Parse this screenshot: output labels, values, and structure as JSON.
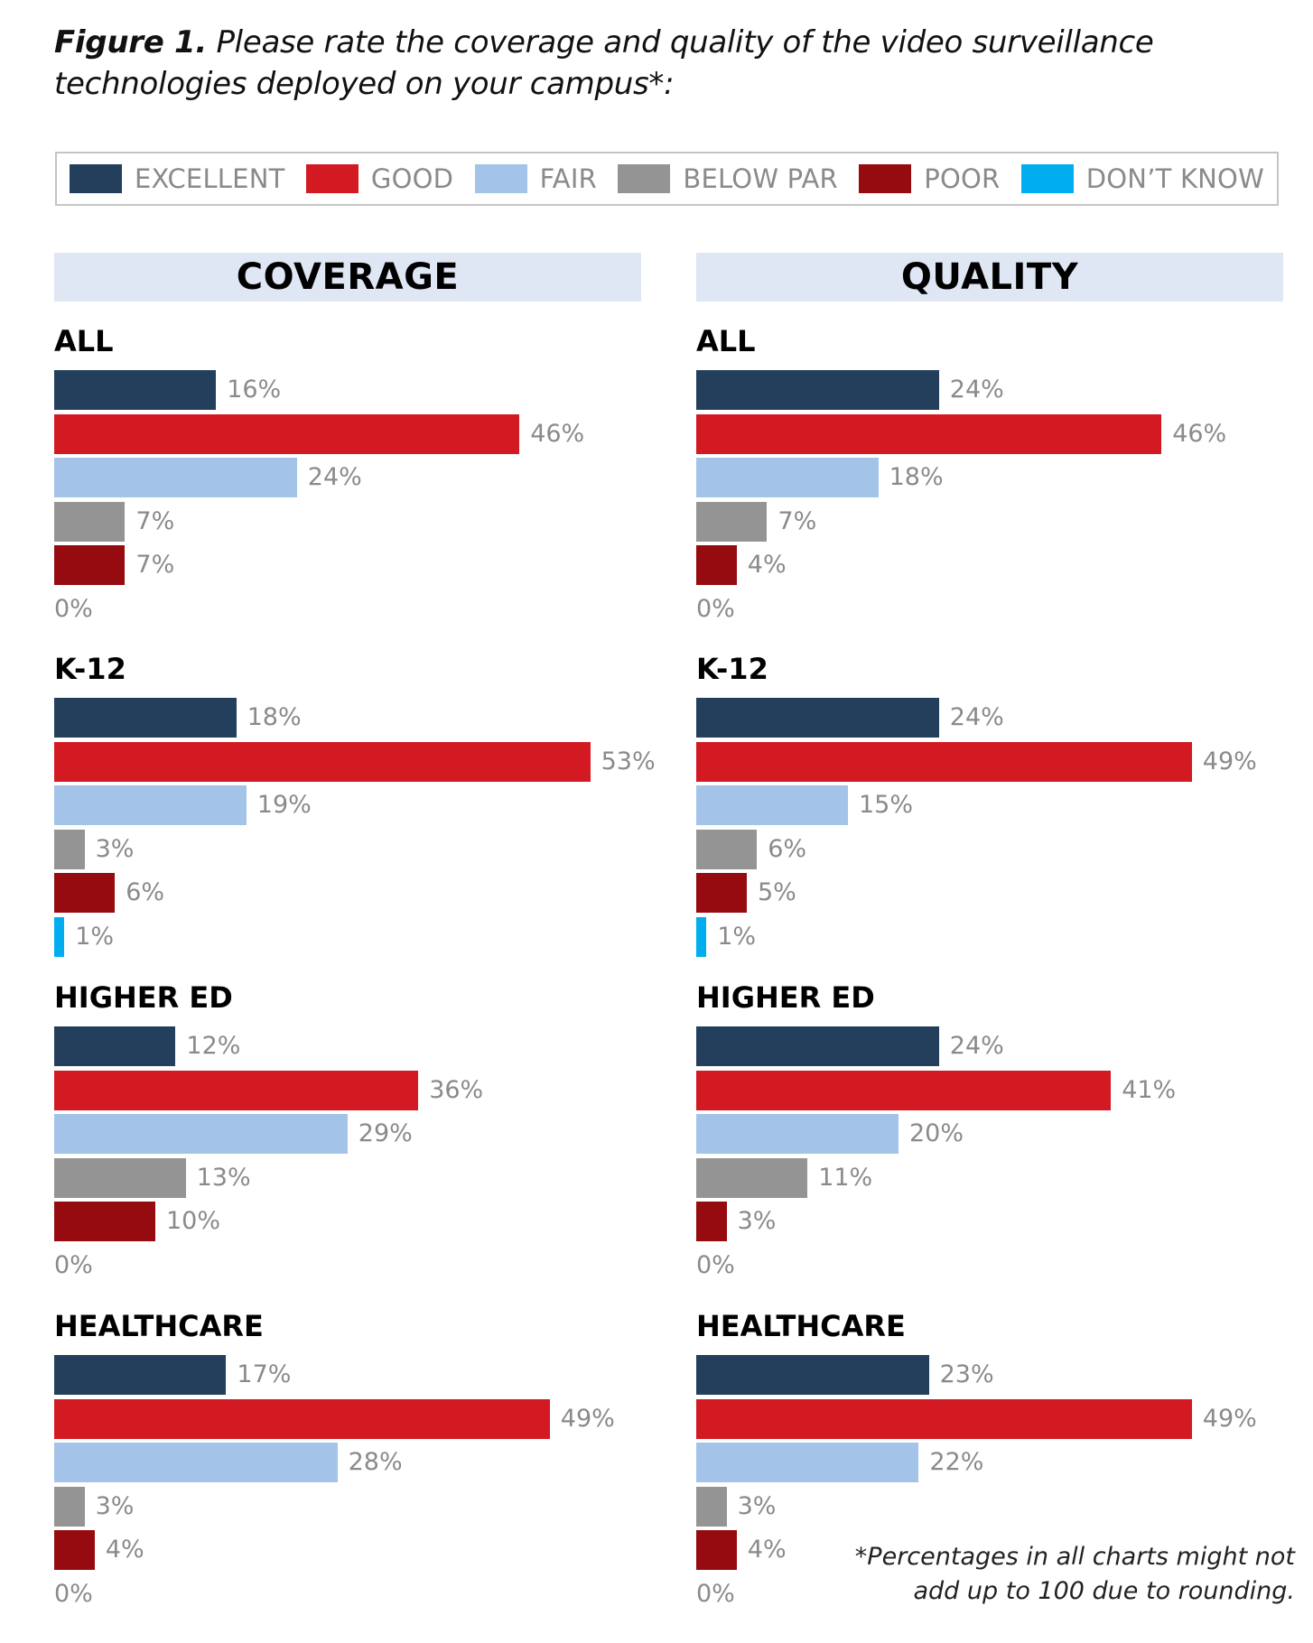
{
  "figure": {
    "label": "Figure 1.",
    "title": "Please rate the coverage and quality of the video surveillance technologies deployed on your campus*:"
  },
  "legend": [
    {
      "label": "EXCELLENT",
      "color": "#233f5c"
    },
    {
      "label": "GOOD",
      "color": "#d31a22"
    },
    {
      "label": "FAIR",
      "color": "#a3c4e8"
    },
    {
      "label": "BELOW PAR",
      "color": "#949494"
    },
    {
      "label": "POOR",
      "color": "#950b10"
    },
    {
      "label": "DON’T KNOW",
      "color": "#00aeef"
    }
  ],
  "panels": {
    "coverage": "COVERAGE",
    "quality": "QUALITY"
  },
  "footnote": {
    "line1": "*Percentages in all charts might not",
    "line2": "add up to 100 due to rounding."
  },
  "chart_data": [
    {
      "type": "bar",
      "title": "COVERAGE",
      "categories": [
        "EXCELLENT",
        "GOOD",
        "FAIR",
        "BELOW PAR",
        "POOR",
        "DON’T KNOW"
      ],
      "series": [
        {
          "name": "ALL",
          "values": [
            16,
            46,
            24,
            7,
            7,
            0
          ]
        },
        {
          "name": "K-12",
          "values": [
            18,
            53,
            19,
            3,
            6,
            1
          ]
        },
        {
          "name": "HIGHER ED",
          "values": [
            12,
            36,
            29,
            13,
            10,
            0
          ]
        },
        {
          "name": "HEALTHCARE",
          "values": [
            17,
            49,
            28,
            3,
            4,
            0
          ]
        }
      ],
      "unit": "%"
    },
    {
      "type": "bar",
      "title": "QUALITY",
      "categories": [
        "EXCELLENT",
        "GOOD",
        "FAIR",
        "BELOW PAR",
        "POOR",
        "DON’T KNOW"
      ],
      "series": [
        {
          "name": "ALL",
          "values": [
            24,
            46,
            18,
            7,
            4,
            0
          ]
        },
        {
          "name": "K-12",
          "values": [
            24,
            49,
            15,
            6,
            5,
            1
          ]
        },
        {
          "name": "HIGHER ED",
          "values": [
            24,
            41,
            20,
            11,
            3,
            0
          ]
        },
        {
          "name": "HEALTHCARE",
          "values": [
            23,
            49,
            22,
            3,
            4,
            0
          ]
        }
      ],
      "unit": "%"
    }
  ]
}
